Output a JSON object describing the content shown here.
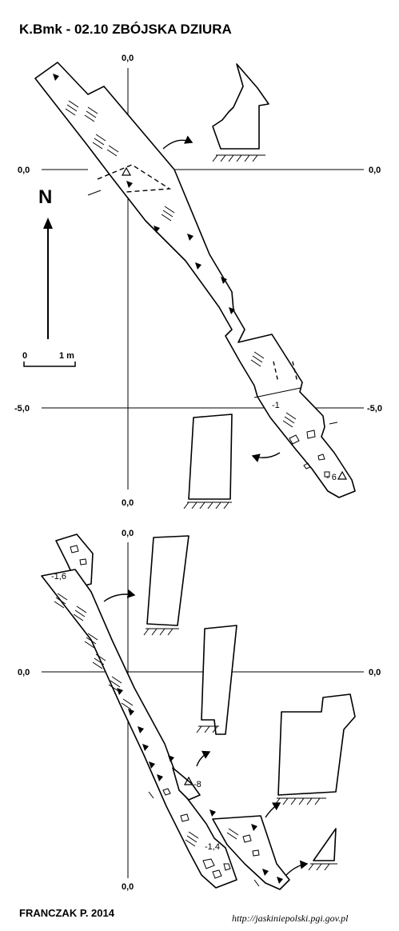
{
  "title": "K.Bmk - 02.10  ZBÓJSKA DZIURA",
  "north_label": "N",
  "scale": {
    "start": "0",
    "end": "1 m"
  },
  "upper_plan": {
    "axis_labels": {
      "top": "0,0",
      "left": "0,0",
      "right": "0,0",
      "left_lower": "-5,0",
      "right_lower": "-5,0",
      "bottom": "0,0"
    },
    "depth_labels": [
      "-1",
      "- 6"
    ]
  },
  "lower_plan": {
    "axis_labels": {
      "top": "0,0",
      "left": "0,0",
      "right": "0,0",
      "bottom": "0,0"
    },
    "depth_labels": [
      "-1,6",
      "-8",
      "-1,4"
    ]
  },
  "author": "FRANCZAK P. 2014",
  "source": "http://jaskiniepolski.pgi.gov.pl",
  "colors": {
    "ink": "#000000",
    "paper": "#ffffff"
  }
}
